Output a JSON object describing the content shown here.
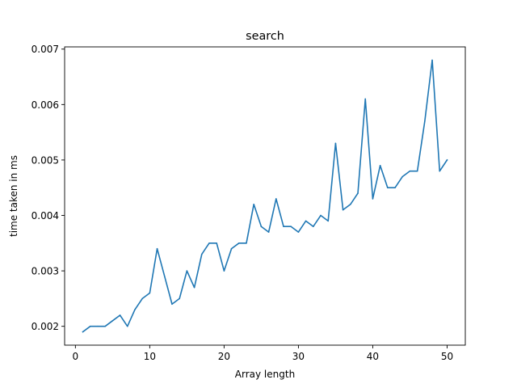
{
  "chart_data": {
    "type": "line",
    "title": "search",
    "xlabel": "Array length",
    "ylabel": "time taken in ms",
    "xlim": [
      -1.45,
      52.45
    ],
    "ylim": [
      0.00166,
      0.00704
    ],
    "xticks": [
      0,
      10,
      20,
      30,
      40,
      50
    ],
    "xtick_labels": [
      "0",
      "10",
      "20",
      "30",
      "40",
      "50"
    ],
    "yticks": [
      0.002,
      0.003,
      0.004,
      0.005,
      0.006,
      0.007
    ],
    "ytick_labels": [
      "0.002",
      "0.003",
      "0.004",
      "0.005",
      "0.006",
      "0.007"
    ],
    "grid": false,
    "legend": "none",
    "series": [
      {
        "color": "#1f77b4",
        "x": [
          1,
          2,
          3,
          4,
          5,
          6,
          7,
          8,
          9,
          10,
          11,
          12,
          13,
          14,
          15,
          16,
          17,
          18,
          19,
          20,
          21,
          22,
          23,
          24,
          25,
          26,
          27,
          28,
          29,
          30,
          31,
          32,
          33,
          34,
          35,
          36,
          37,
          38,
          39,
          40,
          41,
          42,
          43,
          44,
          45,
          46,
          47,
          48,
          49,
          50
        ],
        "y": [
          0.0019,
          0.002,
          0.002,
          0.002,
          0.0021,
          0.0022,
          0.002,
          0.0023,
          0.0025,
          0.0026,
          0.0034,
          0.0029,
          0.0024,
          0.0025,
          0.003,
          0.0027,
          0.0033,
          0.0035,
          0.0035,
          0.003,
          0.0034,
          0.0035,
          0.0035,
          0.0042,
          0.0038,
          0.0037,
          0.0043,
          0.0038,
          0.0038,
          0.0037,
          0.0039,
          0.0038,
          0.004,
          0.0039,
          0.0053,
          0.0041,
          0.0042,
          0.0044,
          0.0061,
          0.0043,
          0.0049,
          0.0045,
          0.0045,
          0.0047,
          0.0048,
          0.0048,
          0.0057,
          0.0068,
          0.0048,
          0.005
        ]
      }
    ]
  }
}
